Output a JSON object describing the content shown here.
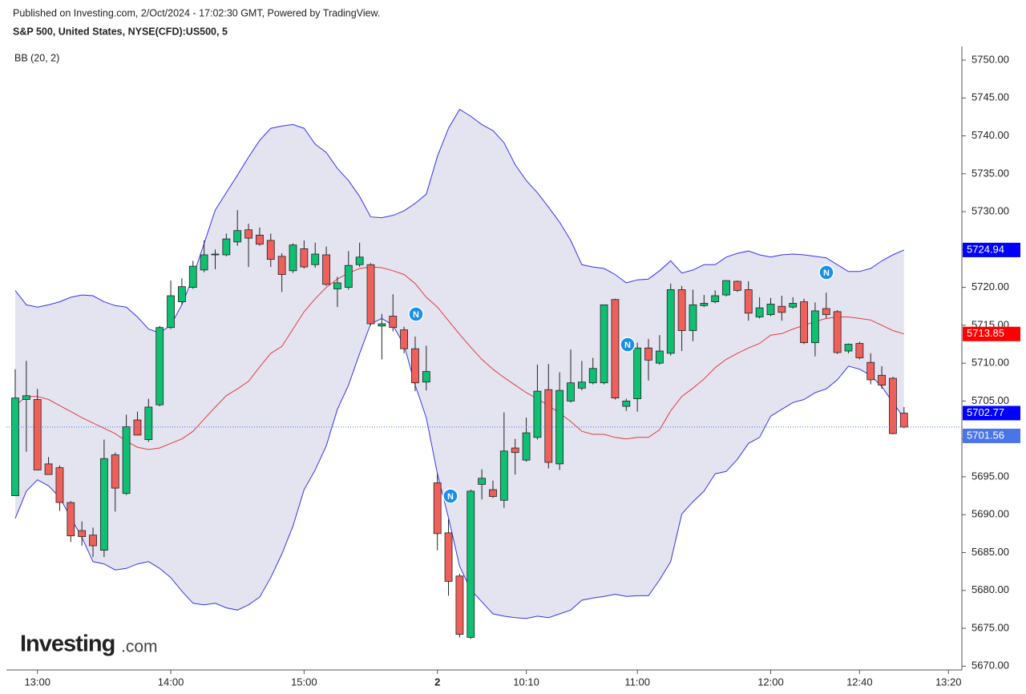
{
  "header": {
    "published": "Published on Investing.com, 2/Oct/2024 - 17:02:30 GMT, Powered by TradingView.",
    "symbol": "S&P 500, United States, NYSE(CFD):US500, 5",
    "indicator": "BB (20, 2)"
  },
  "logo": {
    "name": "Investing",
    "suffix": ".com"
  },
  "news_markers": [
    "N",
    "N",
    "N",
    "N"
  ],
  "chart_data": {
    "type": "candlestick",
    "categories": [
      null,
      null,
      "13:00",
      null,
      null,
      null,
      null,
      null,
      null,
      null,
      null,
      null,
      null,
      null,
      "14:00",
      null,
      null,
      null,
      null,
      null,
      null,
      null,
      null,
      null,
      null,
      null,
      "15:00",
      null,
      null,
      null,
      null,
      null,
      null,
      null,
      null,
      null,
      null,
      null,
      "2",
      null,
      null,
      null,
      null,
      null,
      null,
      null,
      "10:10",
      null,
      null,
      null,
      null,
      null,
      null,
      null,
      null,
      null,
      "11:00",
      null,
      null,
      null,
      null,
      null,
      null,
      null,
      null,
      null,
      null,
      null,
      "12:00",
      null,
      null,
      null,
      null,
      null,
      null,
      null,
      "12:40",
      null,
      null,
      null,
      null,
      null,
      null,
      null,
      "13:20"
    ],
    "open": [
      5692.5,
      5705.2,
      5705.2,
      5696.7,
      5696.2,
      5691.6,
      5687.9,
      5687.3,
      5685.3,
      5697.9,
      5692.8,
      5702.5,
      5699.9,
      5704.5,
      5714.7,
      5718.1,
      5720.0,
      5722.3,
      5724.3,
      5724.3,
      5726.0,
      5727.6,
      5726.9,
      5726.2,
      5724.1,
      5722.2,
      5725.1,
      5723.0,
      5724.3,
      5719.8,
      5720.0,
      5723.0,
      5723.0,
      5714.9,
      5716.2,
      5714.4,
      5711.9,
      5707.5,
      5694.2,
      5687.6,
      5681.9,
      5673.8,
      5694.0,
      5693.3,
      5691.9,
      5698.8,
      5697.2,
      5700.2,
      5706.5,
      5696.7,
      5705.0,
      5706.7,
      5707.4,
      5707.4,
      5718.4,
      5704.3,
      5705.3,
      5712.0,
      5710.0,
      5711.3,
      5719.7,
      5714.3,
      5717.6,
      5718.1,
      5719.0,
      5720.8,
      5719.7,
      5716.1,
      5716.4,
      5717.5,
      5717.4,
      5718.1,
      5712.7,
      5717.2,
      5716.8,
      5711.6,
      5712.6,
      5710.1,
      5708.4,
      5708.0,
      5703.4,
      null,
      null,
      null,
      null
    ],
    "high": [
      5709.2,
      5710.3,
      5706.6,
      5697.6,
      5696.5,
      5691.8,
      5689.1,
      5688.3,
      5699.9,
      5698.2,
      5703.2,
      5703.6,
      5705.3,
      5714.9,
      5720.9,
      5721.2,
      5723.5,
      5726.2,
      5725.0,
      5727.1,
      5730.2,
      5728.4,
      5727.9,
      5727.1,
      5724.5,
      5725.8,
      5726.2,
      5725.9,
      5725.4,
      5721.4,
      5724.8,
      5725.9,
      5723.2,
      5716.5,
      5719.1,
      5714.8,
      5713.5,
      5712.3,
      5695.4,
      5689.4,
      5682.2,
      5693.3,
      5696.0,
      5694.5,
      5703.5,
      5700.0,
      5702.8,
      5709.8,
      5709.9,
      5708.8,
      5711.8,
      5710.3,
      5710.7,
      5717.7,
      5718.5,
      5705.3,
      5712.7,
      5713.2,
      5713.7,
      5720.5,
      5720.2,
      5719.7,
      5719.0,
      5719.6,
      5720.9,
      5720.9,
      5720.8,
      5718.7,
      5718.6,
      5718.9,
      5718.7,
      5718.5,
      5718.0,
      5719.3,
      5717.0,
      5712.6,
      5712.8,
      5711.3,
      5709.6,
      5708.2,
      5704.2,
      null,
      null,
      null,
      null
    ],
    "low": [
      5692.5,
      5698.3,
      5695.9,
      5695.3,
      5690.5,
      5686.4,
      5685.9,
      5684.4,
      5684.4,
      5690.4,
      5692.6,
      5700.5,
      5699.6,
      5704.3,
      5714.5,
      5717.7,
      5719.8,
      5722.0,
      5722.4,
      5724.1,
      5725.5,
      5722.7,
      5725.5,
      5722.7,
      5719.4,
      5721.9,
      5722.5,
      5722.6,
      5720.2,
      5717.4,
      5719.7,
      5722.7,
      5715.0,
      5710.5,
      5714.2,
      5711.3,
      5706.3,
      5706.4,
      5685.3,
      5679.3,
      5673.8,
      5673.6,
      5692.0,
      5692.2,
      5690.9,
      5695.3,
      5697.0,
      5699.9,
      5696.1,
      5695.9,
      5704.8,
      5706.4,
      5707.2,
      5707.2,
      5705.2,
      5703.7,
      5703.6,
      5707.7,
      5709.8,
      5711.0,
      5711.6,
      5712.9,
      5717.4,
      5717.9,
      5718.8,
      5719.4,
      5715.6,
      5715.9,
      5716.2,
      5715.6,
      5717.2,
      5712.5,
      5710.9,
      5715.9,
      5711.2,
      5711.3,
      5710.5,
      5707.2,
      5706.6,
      5700.6,
      5701.4,
      null,
      null,
      null,
      null
    ],
    "close": [
      5705.4,
      5705.7,
      5695.9,
      5695.3,
      5691.6,
      5687.2,
      5687.1,
      5685.9,
      5697.4,
      5693.5,
      5701.6,
      5700.5,
      5704.2,
      5714.7,
      5718.9,
      5720.1,
      5722.8,
      5724.3,
      5724.4,
      5726.4,
      5727.5,
      5726.5,
      5725.7,
      5723.7,
      5721.7,
      5725.6,
      5722.7,
      5724.4,
      5720.4,
      5720.6,
      5722.9,
      5724.0,
      5715.2,
      5715.2,
      5714.7,
      5711.9,
      5707.4,
      5708.9,
      5687.5,
      5681.2,
      5674.2,
      5693.1,
      5694.8,
      5692.4,
      5698.4,
      5698.2,
      5700.8,
      5706.3,
      5696.9,
      5706.4,
      5707.4,
      5707.5,
      5709.3,
      5717.7,
      5705.4,
      5705.0,
      5712.0,
      5710.4,
      5711.6,
      5719.7,
      5714.3,
      5717.7,
      5717.9,
      5718.9,
      5720.9,
      5719.6,
      5716.6,
      5717.3,
      5717.8,
      5716.7,
      5717.9,
      5712.7,
      5716.9,
      5716.4,
      5711.4,
      5712.5,
      5710.7,
      5707.8,
      5707.1,
      5700.7,
      5701.56,
      null,
      null,
      null,
      null
    ],
    "up_color": "#0fbf72",
    "down_color": "#f0605a",
    "outline_color": "#222222",
    "bands": {
      "upper": [
        5719.6,
        5717.7,
        5717.4,
        5717.7,
        5718.1,
        5718.7,
        5719.0,
        5718.9,
        5718.1,
        5717.6,
        5717.4,
        5716.1,
        5714.5,
        5714.0,
        5715.0,
        5717.7,
        5721.4,
        5725.8,
        5730.2,
        5732.5,
        5734.8,
        5737.2,
        5739.4,
        5741.0,
        5741.3,
        5741.5,
        5741.0,
        5738.9,
        5737.8,
        5735.7,
        5734.1,
        5732.0,
        5729.3,
        5729.2,
        5729.5,
        5730.1,
        5731.1,
        5732.3,
        5737.3,
        5741.0,
        5743.5,
        5742.6,
        5741.5,
        5740.7,
        5739.1,
        5736.2,
        5734.1,
        5732.5,
        5730.6,
        5728.6,
        5726.2,
        5723.0,
        5722.7,
        5722.5,
        5721.7,
        5720.6,
        5721.0,
        5721.1,
        5722.2,
        5723.5,
        5721.9,
        5722.3,
        5723.0,
        5723.0,
        5724.0,
        5724.5,
        5724.8,
        5724.3,
        5724.0,
        5724.3,
        5724.4,
        5724.3,
        5724.1,
        5723.9,
        5723.0,
        5722.1,
        5722.1,
        5722.5,
        5723.5,
        5724.3,
        5724.94,
        null,
        null,
        null,
        null
      ],
      "middle": [
        5704.4,
        5705.6,
        5705.6,
        5705.2,
        5704.4,
        5703.6,
        5702.8,
        5702.1,
        5701.4,
        5700.7,
        5699.7,
        5698.9,
        5698.6,
        5698.8,
        5699.4,
        5700.0,
        5701.0,
        5702.6,
        5704.2,
        5705.7,
        5706.6,
        5707.6,
        5709.5,
        5711.3,
        5712.2,
        5714.5,
        5716.8,
        5718.5,
        5720.0,
        5721.1,
        5721.9,
        5722.5,
        5722.7,
        5722.6,
        5722.2,
        5721.7,
        5720.5,
        5718.7,
        5717.4,
        5715.6,
        5713.8,
        5712.1,
        5710.5,
        5709.2,
        5708.1,
        5707.1,
        5706.1,
        5705.3,
        5704.4,
        5703.4,
        5702.3,
        5701.0,
        5700.6,
        5700.6,
        5700.2,
        5700.0,
        5700.2,
        5700.2,
        5701.2,
        5703.7,
        5705.6,
        5706.7,
        5707.9,
        5709.4,
        5710.5,
        5711.3,
        5712.0,
        5712.6,
        5713.7,
        5713.9,
        5714.5,
        5715.0,
        5715.5,
        5715.9,
        5716.1,
        5716.1,
        5715.9,
        5715.7,
        5715.0,
        5714.3,
        5713.85,
        null,
        null,
        null,
        null
      ],
      "lower": [
        5689.5,
        5693.1,
        5694.6,
        5693.8,
        5692.3,
        5689.6,
        5687.0,
        5683.8,
        5683.5,
        5682.7,
        5682.9,
        5683.5,
        5683.8,
        5682.9,
        5681.7,
        5679.9,
        5678.3,
        5678.1,
        5678.3,
        5677.7,
        5677.4,
        5678.1,
        5679.1,
        5681.7,
        5684.8,
        5688.5,
        5693.3,
        5695.9,
        5699.1,
        5703.9,
        5707.1,
        5711.3,
        5715.2,
        5715.9,
        5715.0,
        5712.4,
        5707.1,
        5702.8,
        5695.4,
        5689.6,
        5683.2,
        5680.1,
        5678.5,
        5676.9,
        5676.6,
        5676.4,
        5676.3,
        5676.6,
        5676.4,
        5676.9,
        5677.4,
        5678.7,
        5679.0,
        5679.2,
        5679.5,
        5679.2,
        5679.3,
        5679.3,
        5681.4,
        5683.8,
        5690.1,
        5691.7,
        5693.1,
        5695.4,
        5695.7,
        5697.3,
        5699.4,
        5700.2,
        5703.0,
        5703.9,
        5704.8,
        5705.2,
        5706.1,
        5706.6,
        5707.8,
        5709.6,
        5709.2,
        5708.4,
        5706.9,
        5704.8,
        5702.77,
        null,
        null,
        null,
        null
      ],
      "band_color": "#3535e8",
      "middle_color": "#e03c3c",
      "fill_color": "#e4e4f1",
      "upper_badge_color": "#0000ff",
      "middle_badge_color": "#ff0000",
      "lower_badge_color": "#0000ff",
      "close_badge_color": "#4a74e8"
    },
    "ylim": [
      5669.5,
      5751.8
    ],
    "yticks": [
      {
        "value": 5670,
        "label": "5670.00"
      },
      {
        "value": 5675,
        "label": "5675.00"
      },
      {
        "value": 5680,
        "label": "5680.00"
      },
      {
        "value": 5685,
        "label": "5685.00"
      },
      {
        "value": 5690,
        "label": "5690.00"
      },
      {
        "value": 5695,
        "label": "5695.00"
      },
      {
        "value": 5700,
        "label": "5700.00"
      },
      {
        "value": 5705,
        "label": "5705.00"
      },
      {
        "value": 5710,
        "label": "5710.00"
      },
      {
        "value": 5715,
        "label": "5715.00"
      },
      {
        "value": 5720,
        "label": "5720.00"
      },
      {
        "value": 5725,
        "label": "5725.00"
      },
      {
        "value": 5730,
        "label": "5730.00"
      },
      {
        "value": 5735,
        "label": "5735.00"
      },
      {
        "value": 5740,
        "label": "5740.00"
      },
      {
        "value": 5745,
        "label": "5745.00"
      },
      {
        "value": 5750,
        "label": "5750.00"
      }
    ]
  }
}
